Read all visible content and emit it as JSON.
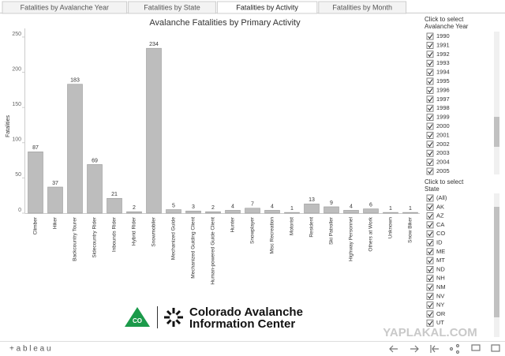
{
  "tabs": [
    "Fatalities by Avalanche Year",
    "Fatalities by State",
    "Fatalities by Activity",
    "Fatalities by Month"
  ],
  "active_tab": 2,
  "chart_data": {
    "type": "bar",
    "title": "Avalanche Fatalities by Primary Activity",
    "y_label": "Fatalities",
    "categories": [
      "Climber",
      "Hiker",
      "Backcountry Tourer",
      "Sidecountry Rider",
      "Inbounds Rider",
      "Hybrid Rider",
      "Snowmobiler",
      "Mechanized Guide",
      "Mechanized Guiding Client",
      "Human-powered Guide Client",
      "Hunter",
      "Snowplayer",
      "Misc Recreation",
      "Motorist",
      "Resident",
      "Ski Patroller",
      "Highway Personnel",
      "Others at Work",
      "Unknown",
      "Snow Biker"
    ],
    "values": [
      87,
      37,
      183,
      69,
      21,
      2,
      234,
      5,
      3,
      2,
      4,
      7,
      4,
      1,
      13,
      9,
      4,
      6,
      1,
      1
    ],
    "color": "#bdbdbd",
    "ylim": [
      0,
      260
    ],
    "yticks": [
      0,
      50,
      100,
      150,
      200,
      250
    ],
    "grid": false
  },
  "filters": [
    {
      "title_lines": [
        "Click to select",
        "Avalanche Year"
      ],
      "items": [
        "1990",
        "1991",
        "1992",
        "1993",
        "1994",
        "1995",
        "1996",
        "1997",
        "1998",
        "1999",
        "2000",
        "2001",
        "2002",
        "2003",
        "2004",
        "2005"
      ]
    },
    {
      "title_lines": [
        "Click to select",
        "State"
      ],
      "items": [
        "(All)",
        "AK",
        "AZ",
        "CA",
        "CO",
        "ID",
        "ME",
        "MT",
        "ND",
        "NH",
        "NM",
        "NV",
        "NY",
        "OR",
        "UT"
      ]
    }
  ],
  "logo": {
    "badge": "CO",
    "lines": [
      "Colorado Avalanche",
      "Information Center"
    ]
  },
  "watermark": "YAPLAKAL.COM",
  "footer": {
    "brand": "+ a b l e a u"
  }
}
